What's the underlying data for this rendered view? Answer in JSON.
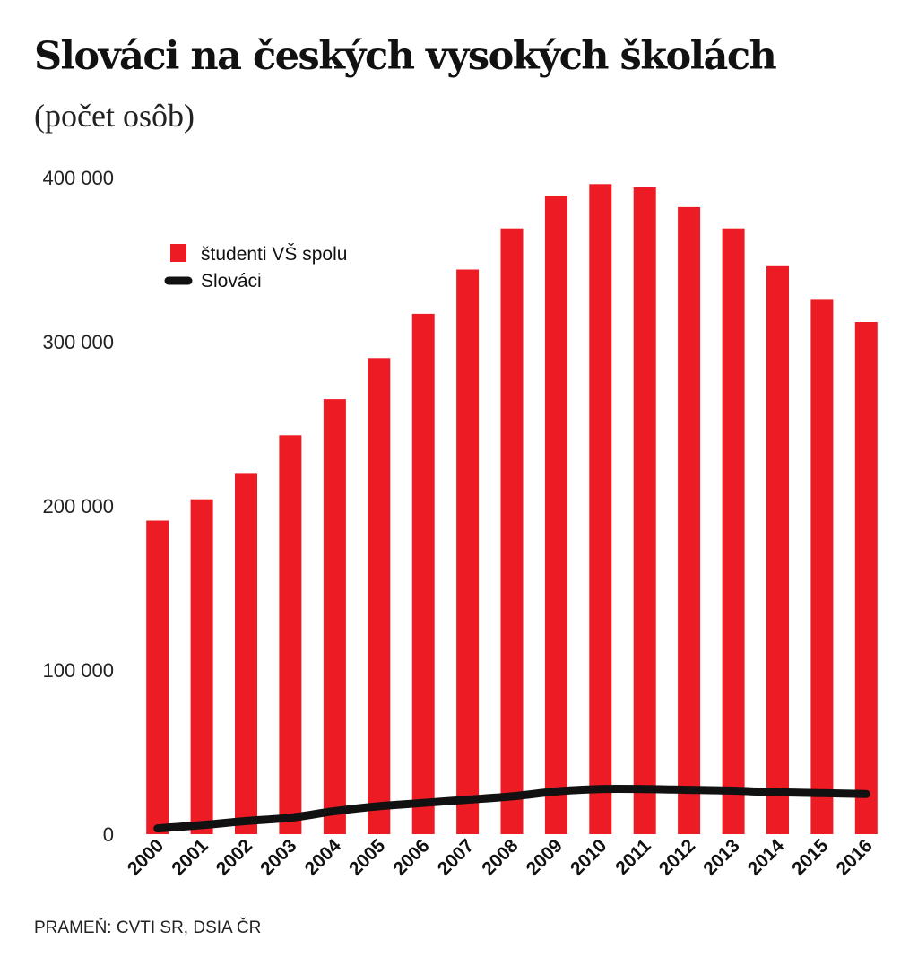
{
  "title": "Slováci na českých vysokých školách",
  "subtitle": "(počet osôb)",
  "source": "PRAMEŇ: CVTI SR, DSIA ČR",
  "colors": {
    "bar": "#ed1c24",
    "line": "#111111"
  },
  "chart_data": {
    "type": "bar",
    "title": "Slováci na českých vysokých školách",
    "subtitle": "(počet osôb)",
    "xlabel": "",
    "ylabel": "",
    "ylim": [
      0,
      400000
    ],
    "y_ticks": [
      0,
      100000,
      200000,
      300000,
      400000
    ],
    "y_tick_labels": [
      "0",
      "100 000",
      "200 000",
      "300 000",
      "400 000"
    ],
    "grid": false,
    "legend_position": "top-left",
    "categories": [
      "2000",
      "2001",
      "2002",
      "2003",
      "2004",
      "2005",
      "2006",
      "2007",
      "2008",
      "2009",
      "2010",
      "2011",
      "2012",
      "2013",
      "2014",
      "2015",
      "2016"
    ],
    "series": [
      {
        "name": "študenti VŠ spolu",
        "type": "bar",
        "values": [
          191000,
          204000,
          220000,
          243000,
          265000,
          290000,
          317000,
          344000,
          369000,
          389000,
          396000,
          394000,
          382000,
          369000,
          346000,
          326000,
          312000
        ]
      },
      {
        "name": "Slováci",
        "type": "line",
        "values": [
          3500,
          5500,
          8000,
          10000,
          14000,
          17000,
          19000,
          21000,
          23000,
          26000,
          27500,
          27500,
          27000,
          26500,
          25500,
          25000,
          24500
        ]
      }
    ]
  }
}
